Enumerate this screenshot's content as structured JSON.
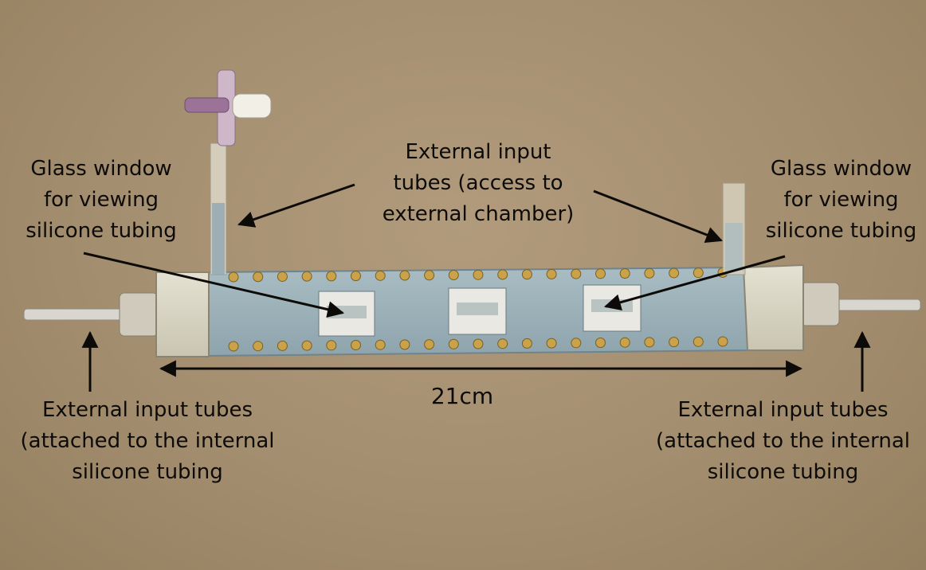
{
  "annotations": {
    "glass_window_left": "Glass window\nfor viewing\nsilicone tubing",
    "input_tubes_top": "External input\ntubes (access to\nexternal chamber)",
    "glass_window_right": "Glass window\nfor viewing\nsilicone tubing",
    "input_tubes_bottom_left": "External input tubes\n(attached to the internal\nsilicone tubing",
    "input_tubes_bottom_right": "External input tubes\n(attached to the internal\nsilicone tubing",
    "dimension": "21cm"
  },
  "colors": {
    "background": "#a48e70",
    "chamber_body": "#9fb4bd",
    "end_caps": "#dcd9c8",
    "screws": "#c9a24a",
    "label_text": "#0d0b08"
  }
}
